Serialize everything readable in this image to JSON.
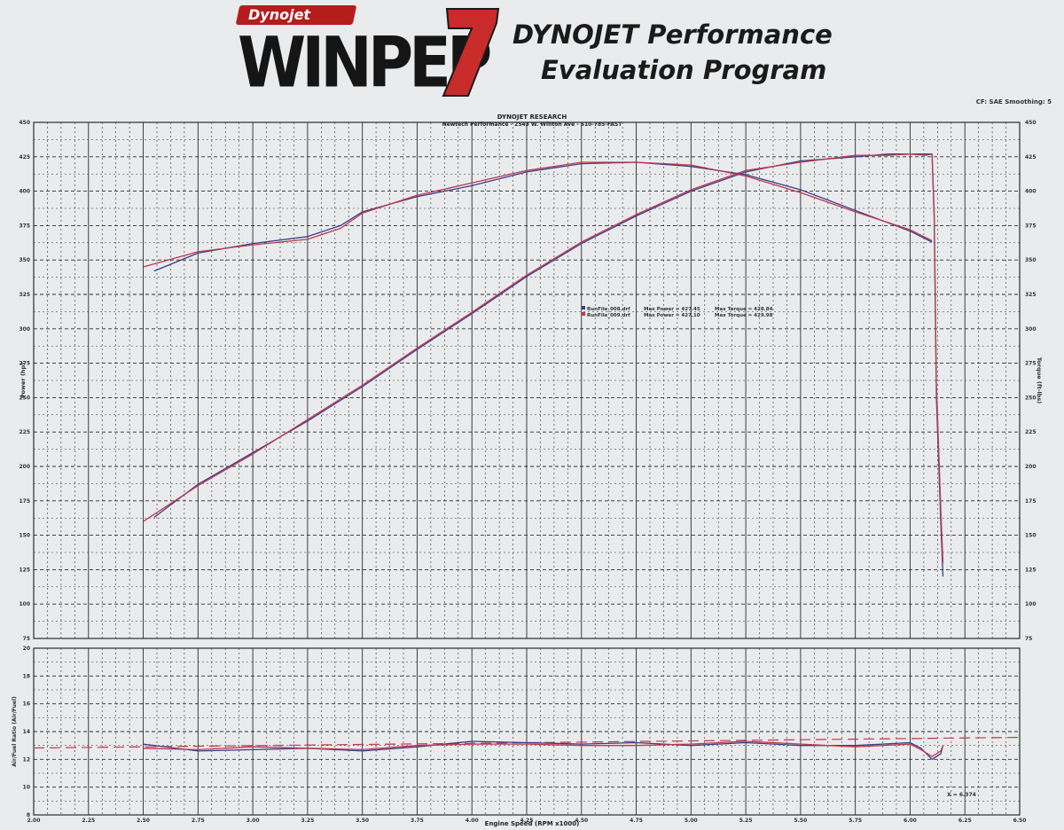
{
  "header": {
    "brand": "Dynojet",
    "product": "WINPEP",
    "version_mark": "7",
    "title_line1": "DYNOJET Performance",
    "title_line2": "Evaluation Program",
    "settings": "CF: SAE  Smoothing: 5"
  },
  "colors": {
    "run1": "#3a3f8a",
    "run2": "#c2384a",
    "grid": "#2c2c2c",
    "paper": "#e9ebed"
  },
  "chart_data": [
    {
      "type": "line",
      "title": "DYNOJET RESEARCH",
      "subtitle": "Newtech Performance - 2543 W. Winton Ave - 510-785-FAST",
      "xlabel": "Engine Speed (RPM x1000)",
      "ylabel": "Power (hp)",
      "ylabel_right": "Torque (ft-lbs)",
      "xlim": [
        2.0,
        6.5
      ],
      "ylim": [
        75,
        450
      ],
      "ylim_right": [
        75,
        450
      ],
      "xticks": [
        "2.00",
        "2.25",
        "2.50",
        "2.75",
        "3.00",
        "3.25",
        "3.50",
        "3.75",
        "4.00",
        "4.25",
        "4.50",
        "4.75",
        "5.00",
        "5.25",
        "5.50",
        "5.75",
        "6.00",
        "6.25",
        "6.50"
      ],
      "yticks": [
        "75",
        "100",
        "125",
        "150",
        "175",
        "200",
        "225",
        "250",
        "275",
        "300",
        "325",
        "350",
        "375",
        "400",
        "425",
        "450"
      ],
      "grid": true,
      "legend_position": "center",
      "legend": [
        {
          "file": "RunFile_008.drf",
          "power_label": "Max Power = 427.45",
          "torque_label": "Max Torque = 428.84",
          "color": "#3a3f8a"
        },
        {
          "file": "RunFile_009.drf",
          "power_label": "Max Power = 427.10",
          "torque_label": "Max Torque = 429.98",
          "color": "#c2384a"
        }
      ],
      "series": [
        {
          "name": "RunFile_008.drf",
          "kind": "power",
          "color": "#3a3f8a",
          "x": [
            2.55,
            2.75,
            3.0,
            3.25,
            3.5,
            3.75,
            4.0,
            4.25,
            4.5,
            4.75,
            5.0,
            5.25,
            5.5,
            5.75,
            5.9,
            6.0,
            6.07,
            6.1,
            6.11,
            6.12,
            6.14,
            6.15
          ],
          "y": [
            163,
            187,
            210,
            233,
            258,
            285,
            311,
            338,
            362,
            382,
            400,
            414,
            422,
            425,
            427,
            427,
            427,
            427,
            380,
            250,
            160,
            120
          ]
        },
        {
          "name": "RunFile_009.drf",
          "kind": "power",
          "color": "#c2384a",
          "x": [
            2.5,
            2.75,
            3.0,
            3.25,
            3.5,
            3.75,
            4.0,
            4.25,
            4.5,
            4.75,
            5.0,
            5.25,
            5.5,
            5.75,
            5.9,
            6.0,
            6.07,
            6.1,
            6.11,
            6.12,
            6.14,
            6.15
          ],
          "y": [
            160,
            186,
            209,
            234,
            259,
            286,
            312,
            339,
            363,
            383,
            401,
            415,
            421,
            426,
            426,
            427,
            426,
            427,
            385,
            260,
            170,
            130
          ]
        },
        {
          "name": "RunFile_008.drf",
          "kind": "torque",
          "color": "#3a3f8a",
          "x": [
            2.55,
            2.75,
            3.0,
            3.25,
            3.4,
            3.5,
            3.75,
            4.0,
            4.25,
            4.5,
            4.75,
            5.0,
            5.25,
            5.5,
            5.75,
            6.0,
            6.1
          ],
          "y": [
            342,
            355,
            362,
            367,
            375,
            385,
            396,
            404,
            414,
            420,
            421,
            418,
            412,
            401,
            386,
            371,
            363
          ]
        },
        {
          "name": "RunFile_009.drf",
          "kind": "torque",
          "color": "#c2384a",
          "x": [
            2.5,
            2.75,
            3.0,
            3.25,
            3.4,
            3.5,
            3.75,
            4.0,
            4.25,
            4.5,
            4.75,
            5.0,
            5.25,
            5.5,
            5.75,
            6.0,
            6.1
          ],
          "y": [
            345,
            356,
            361,
            365,
            373,
            384,
            397,
            406,
            415,
            421,
            421,
            419,
            411,
            399,
            385,
            372,
            364
          ]
        }
      ]
    },
    {
      "type": "line",
      "xlabel": "Engine Speed (RPM x1000)",
      "ylabel": "Air/Fuel Ratio (Air/Fuel)",
      "xlim": [
        2.0,
        6.5
      ],
      "ylim": [
        8,
        20
      ],
      "yticks": [
        "8",
        "10",
        "12",
        "14",
        "16",
        "18",
        "20"
      ],
      "xticks": [
        "2.00",
        "2.25",
        "2.50",
        "2.75",
        "3.00",
        "3.25",
        "3.50",
        "3.75",
        "4.00",
        "4.25",
        "4.50",
        "4.75",
        "5.00",
        "5.25",
        "5.50",
        "5.75",
        "6.00",
        "6.25",
        "6.50"
      ],
      "grid": true,
      "reference_line": 13.2,
      "cursor_label": "X = 6.374",
      "series": [
        {
          "name": "RunFile_008.drf",
          "color": "#3a3f8a",
          "x": [
            2.5,
            2.75,
            3.0,
            3.25,
            3.5,
            3.75,
            4.0,
            4.25,
            4.5,
            4.75,
            5.0,
            5.25,
            5.5,
            5.75,
            6.0,
            6.05,
            6.1,
            6.14,
            6.15
          ],
          "y": [
            13.1,
            12.6,
            12.7,
            12.8,
            12.6,
            12.9,
            13.3,
            13.2,
            13.1,
            13.2,
            13.0,
            13.2,
            13.0,
            13.0,
            13.2,
            12.8,
            12.0,
            12.4,
            13.0
          ]
        },
        {
          "name": "RunFile_009.drf",
          "color": "#c2384a",
          "x": [
            2.5,
            2.75,
            3.0,
            3.25,
            3.5,
            3.75,
            4.0,
            4.25,
            4.5,
            4.75,
            5.0,
            5.25,
            5.5,
            5.75,
            6.0,
            6.05,
            6.1,
            6.14,
            6.15
          ],
          "y": [
            12.8,
            12.7,
            12.9,
            12.8,
            12.7,
            13.0,
            13.1,
            13.1,
            13.0,
            13.0,
            13.1,
            13.3,
            13.1,
            12.9,
            13.1,
            12.7,
            12.2,
            12.6,
            13.0
          ]
        }
      ]
    }
  ]
}
